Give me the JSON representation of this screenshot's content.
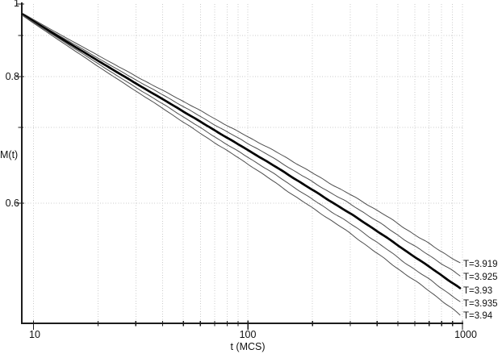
{
  "chart_data": {
    "type": "line",
    "title": "",
    "xlabel": "t (MCS)",
    "ylabel": "M(t)",
    "x_scale": "log",
    "y_scale": "log",
    "xlim": [
      8.9,
      1000
    ],
    "ylim": [
      0.47,
      1.0
    ],
    "grid": "dotted, at every major and minor tick",
    "legend_position": "labels at right ends of curves",
    "x_tick_labels": [
      "10",
      "100",
      "1000"
    ],
    "x_major_ticks": [
      10,
      100,
      1000
    ],
    "x_minor_ticks": [
      20,
      30,
      40,
      50,
      60,
      70,
      80,
      90,
      200,
      300,
      400,
      500,
      600,
      700,
      800,
      900
    ],
    "y_tick_labels": [
      "1",
      "0.8",
      "0.6"
    ],
    "y_major_ticks": [
      1,
      0.8,
      0.6
    ],
    "y_minor_ticks": [
      0.9,
      0.7
    ],
    "series": [
      {
        "label": "T=3.919",
        "temperature": 3.919,
        "line_weight": "thin",
        "t_start": 10,
        "t_end": 1000,
        "M_start": 0.969,
        "M_end": 0.533
      },
      {
        "label": "T=3.925",
        "temperature": 3.925,
        "line_weight": "thin",
        "t_start": 10,
        "t_end": 1000,
        "M_start": 0.968,
        "M_end": 0.522
      },
      {
        "label": "T=3.93",
        "temperature": 3.93,
        "line_weight": "bold",
        "t_start": 10,
        "t_end": 1000,
        "M_start": 0.967,
        "M_end": 0.51
      },
      {
        "label": "T=3.935",
        "temperature": 3.935,
        "line_weight": "thin",
        "t_start": 10,
        "t_end": 1000,
        "M_start": 0.966,
        "M_end": 0.497
      },
      {
        "label": "T=3.94",
        "temperature": 3.94,
        "line_weight": "thin",
        "t_start": 10,
        "t_end": 1000,
        "M_start": 0.965,
        "M_end": 0.485
      }
    ],
    "colors": {
      "curve_thin": "#4d4d4d",
      "curve_bold": "#000000",
      "grid": "#cbcbcb",
      "axis": "#1c1c1c",
      "text": "#111111",
      "background": "#ffffff"
    }
  }
}
